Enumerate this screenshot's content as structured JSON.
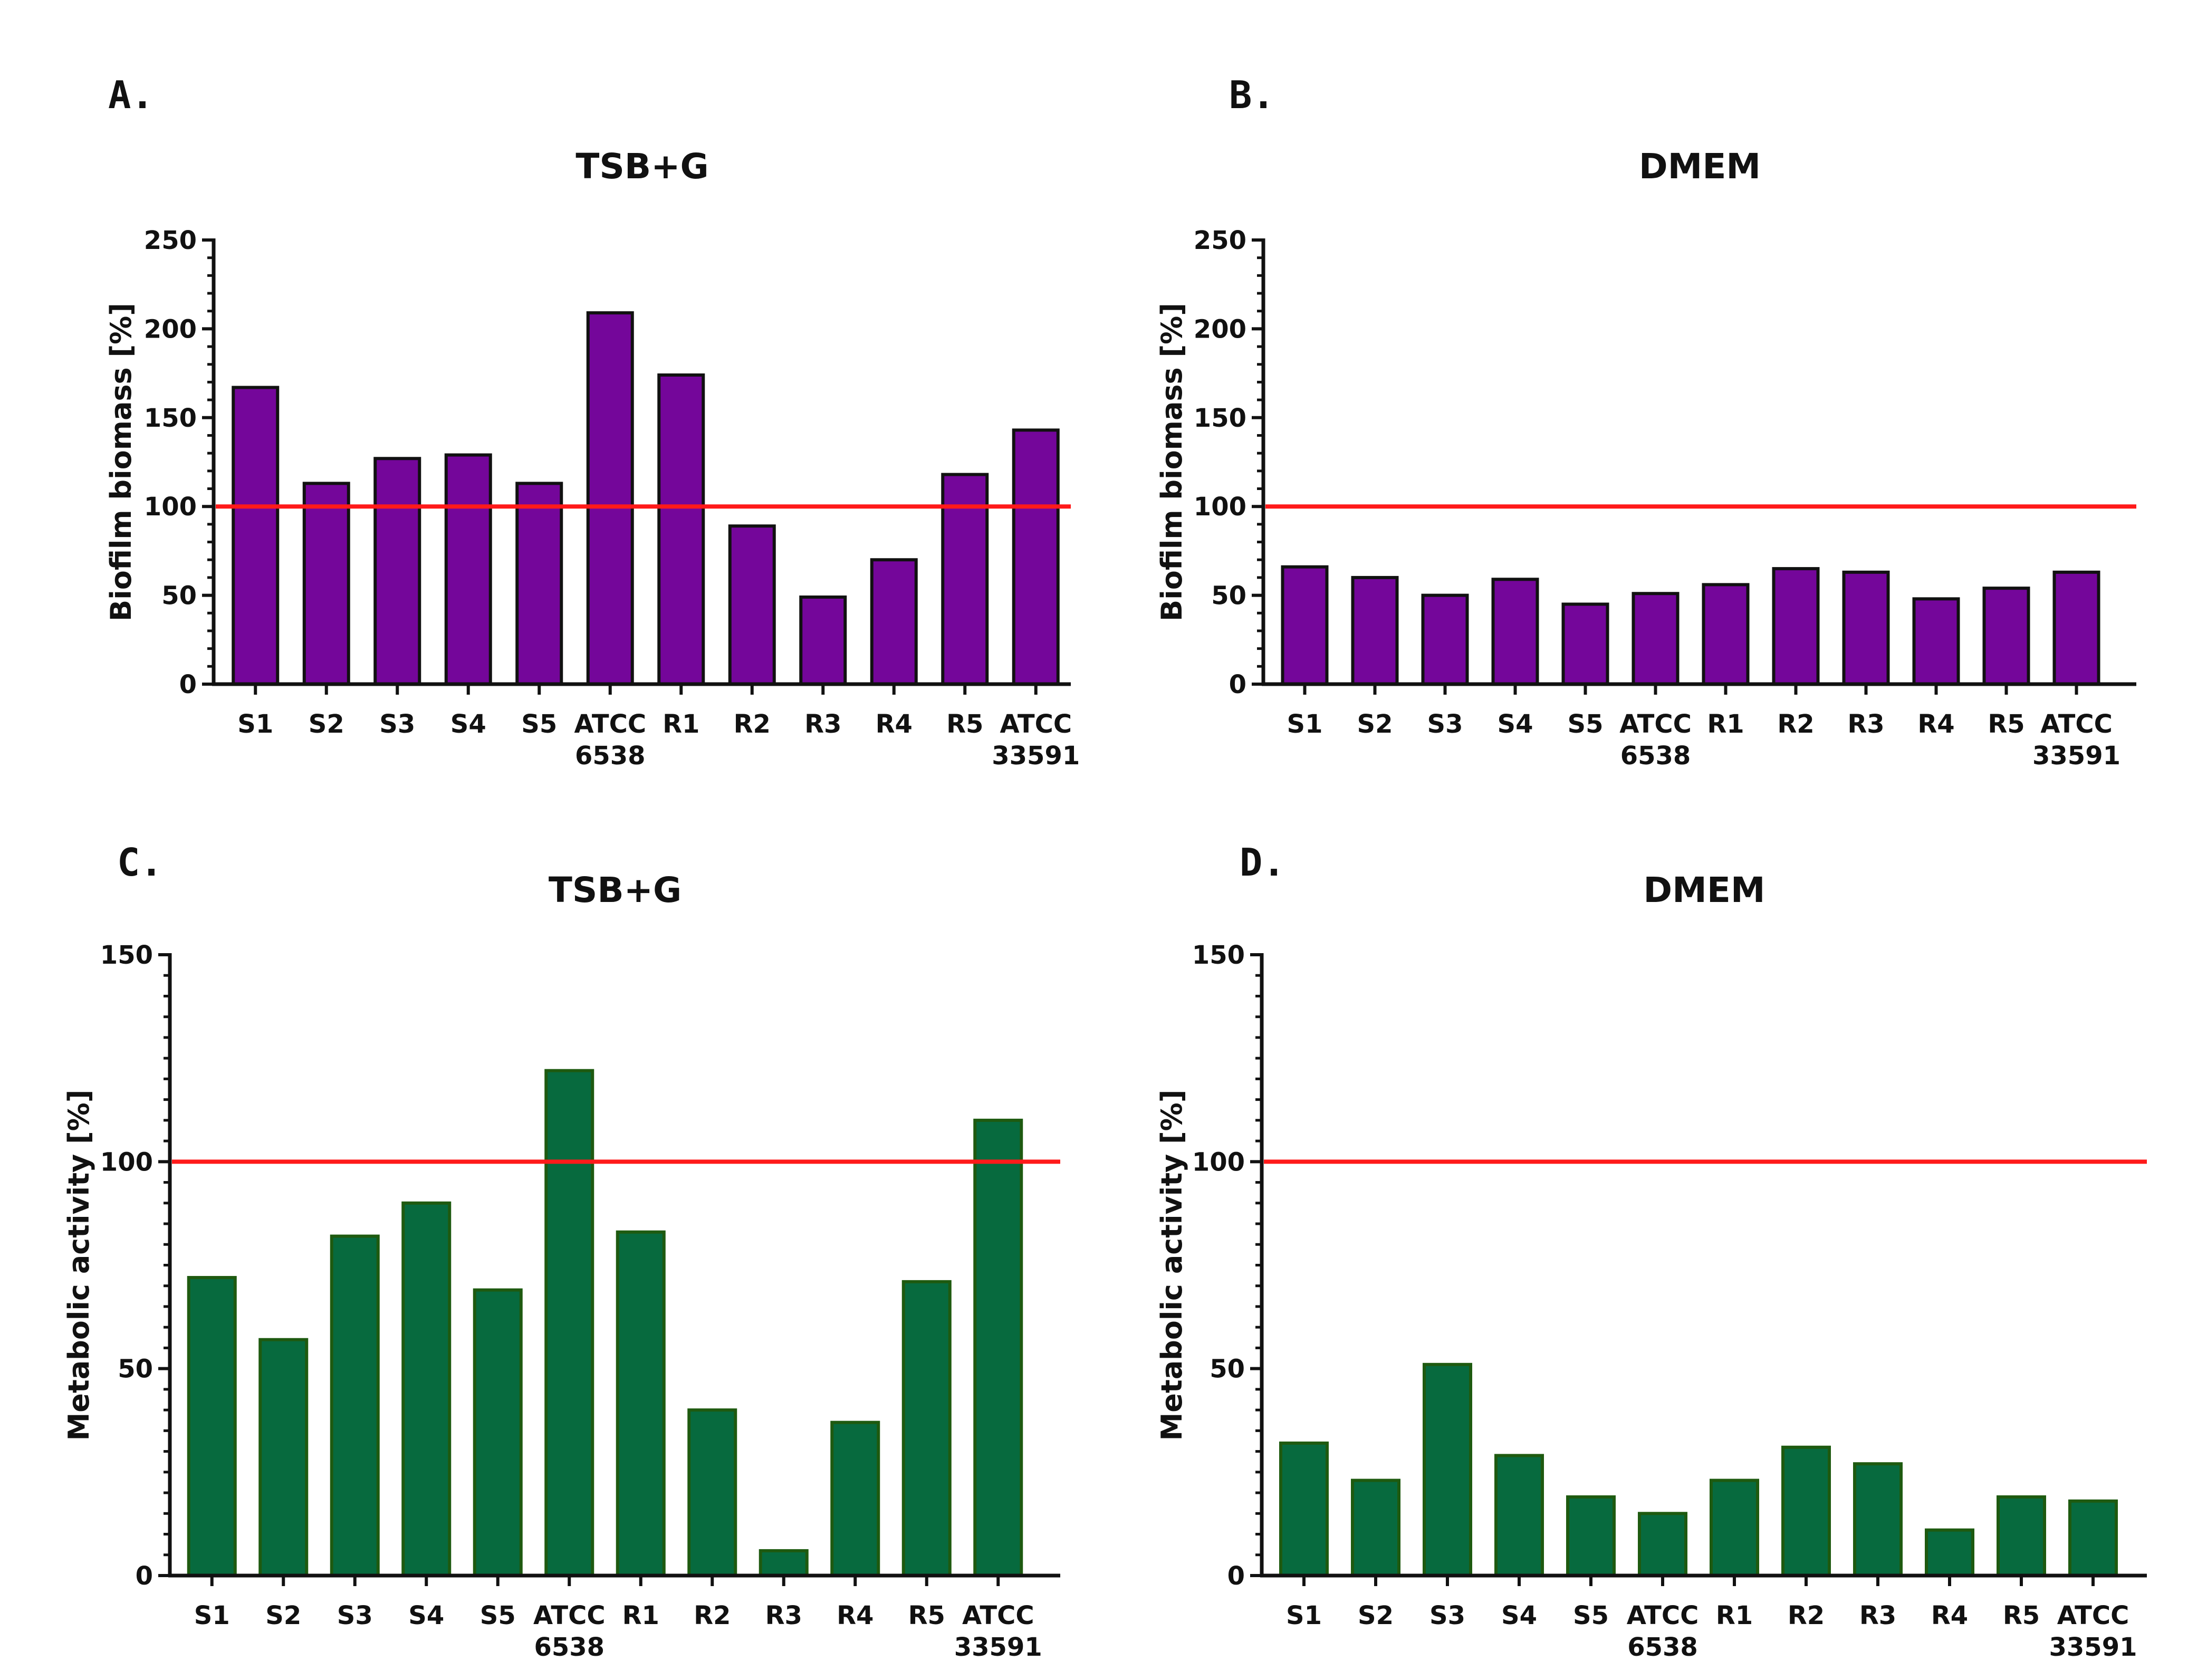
{
  "colors": {
    "biomass_fill": "#74069a",
    "biomass_edge": "#111111",
    "metabolic_fill": "#076a3e",
    "metabolic_edge": "#1e5a10",
    "reference_line": "#ff1a1a",
    "axis": "#111111"
  },
  "chart_data": [
    {
      "panel": "A.",
      "type": "bar",
      "title": "TSB+G",
      "ylabel": "Biofilm biomass [%]",
      "xlabel": "",
      "ylim": [
        0,
        250
      ],
      "yticks": [
        0,
        50,
        100,
        150,
        200,
        250
      ],
      "reference_line": 100,
      "categories": [
        "S1",
        "S2",
        "S3",
        "S4",
        "S5",
        "ATCC\n6538",
        "R1",
        "R2",
        "R3",
        "R4",
        "R5",
        "ATCC\n33591"
      ],
      "values": [
        167,
        113,
        127,
        129,
        113,
        209,
        174,
        89,
        49,
        70,
        118,
        143
      ],
      "grid": false,
      "legend": "none"
    },
    {
      "panel": "B.",
      "type": "bar",
      "title": "DMEM",
      "ylabel": "Biofilm biomass [%]",
      "xlabel": "",
      "ylim": [
        0,
        250
      ],
      "yticks": [
        0,
        50,
        100,
        150,
        200,
        250
      ],
      "reference_line": 100,
      "categories": [
        "S1",
        "S2",
        "S3",
        "S4",
        "S5",
        "ATCC\n6538",
        "R1",
        "R2",
        "R3",
        "R4",
        "R5",
        "ATCC\n33591"
      ],
      "values": [
        66,
        60,
        50,
        59,
        45,
        51,
        56,
        65,
        63,
        48,
        54,
        63
      ],
      "grid": false,
      "legend": "none"
    },
    {
      "panel": "C.",
      "type": "bar",
      "title": "TSB+G",
      "ylabel": "Metabolic activity [%]",
      "xlabel": "",
      "ylim": [
        0,
        150
      ],
      "yticks": [
        0,
        50,
        100,
        150
      ],
      "reference_line": 100,
      "categories": [
        "S1",
        "S2",
        "S3",
        "S4",
        "S5",
        "ATCC\n6538",
        "R1",
        "R2",
        "R3",
        "R4",
        "R5",
        "ATCC\n33591"
      ],
      "values": [
        72,
        57,
        82,
        90,
        69,
        122,
        83,
        40,
        6,
        37,
        71,
        110
      ],
      "grid": false,
      "legend": "none"
    },
    {
      "panel": "D.",
      "type": "bar",
      "title": "DMEM",
      "ylabel": "Metabolic activity [%]",
      "xlabel": "",
      "ylim": [
        0,
        150
      ],
      "yticks": [
        0,
        50,
        100,
        150
      ],
      "reference_line": 100,
      "categories": [
        "S1",
        "S2",
        "S3",
        "S4",
        "S5",
        "ATCC\n6538",
        "R1",
        "R2",
        "R3",
        "R4",
        "R5",
        "ATCC\n33591"
      ],
      "values": [
        32,
        23,
        51,
        29,
        19,
        15,
        23,
        31,
        27,
        11,
        19,
        18
      ],
      "grid": false,
      "legend": "none"
    }
  ]
}
